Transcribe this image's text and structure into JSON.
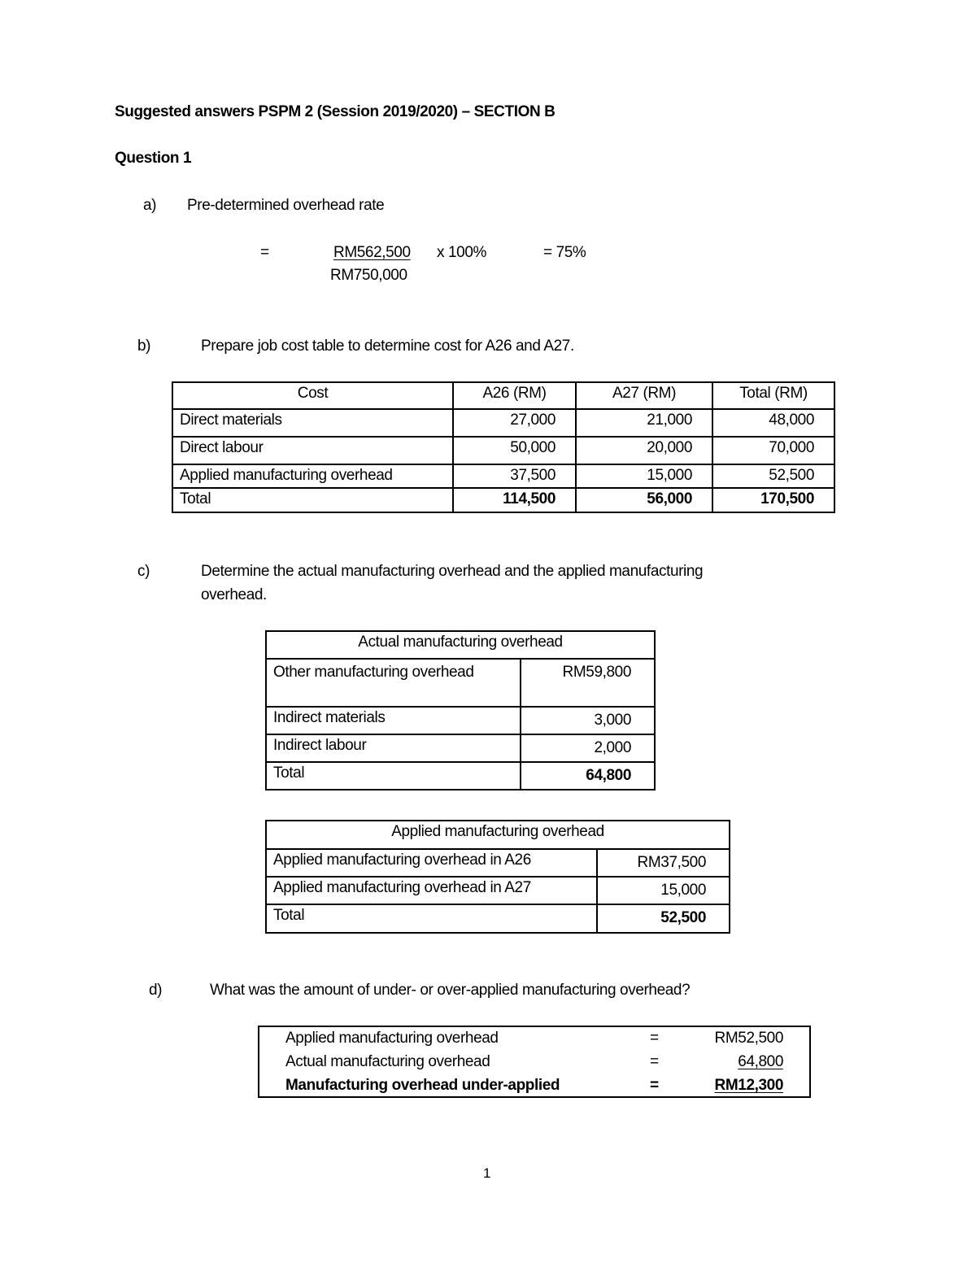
{
  "title": "Suggested answers PSPM 2 (Session 2019/2020) – SECTION B",
  "question": "Question 1",
  "a": {
    "label": "a)",
    "text": "Pre-determined overhead rate",
    "eq": "=",
    "numerator": "RM562,500",
    "times": "x 100%",
    "denominator": "RM750,000",
    "result": "= 75%"
  },
  "b": {
    "label": "b)",
    "text": "Prepare job cost table to determine cost for A26 and A27.",
    "headers": [
      "Cost",
      "A26 (RM)",
      "A27 (RM)",
      "Total (RM)"
    ],
    "rows": [
      [
        "Direct materials",
        "27,000",
        "21,000",
        "48,000"
      ],
      [
        "Direct labour",
        "50,000",
        "20,000",
        "70,000"
      ],
      [
        "Applied manufacturing overhead",
        "37,500",
        "15,000",
        "52,500"
      ],
      [
        "Total",
        "114,500",
        "56,000",
        "170,500"
      ]
    ]
  },
  "c": {
    "label": "c)",
    "text_line1": "Determine the actual manufacturing overhead and the applied manufacturing",
    "text_line2": "overhead.",
    "actual": {
      "header": "Actual manufacturing overhead",
      "rows": [
        [
          "Other manufacturing overhead",
          "RM59,800"
        ],
        [
          "Indirect materials",
          "3,000"
        ],
        [
          "Indirect labour",
          "2,000"
        ],
        [
          "Total",
          "64,800"
        ]
      ]
    },
    "applied": {
      "header": "Applied manufacturing overhead",
      "rows": [
        [
          "Applied manufacturing overhead in A26",
          "RM37,500"
        ],
        [
          "Applied manufacturing overhead in A27",
          "15,000"
        ],
        [
          "Total",
          "52,500"
        ]
      ]
    }
  },
  "d": {
    "label": "d)",
    "text": "What was the amount of under- or over-applied manufacturing overhead?",
    "rows": [
      {
        "label": "Applied manufacturing overhead",
        "eq": "=",
        "value": "RM52,500"
      },
      {
        "label": "Actual manufacturing overhead",
        "eq": "=",
        "value": "64,800"
      },
      {
        "label": "Manufacturing overhead under-applied",
        "eq": "=",
        "value": "RM12,300"
      }
    ]
  },
  "page_number": "1"
}
